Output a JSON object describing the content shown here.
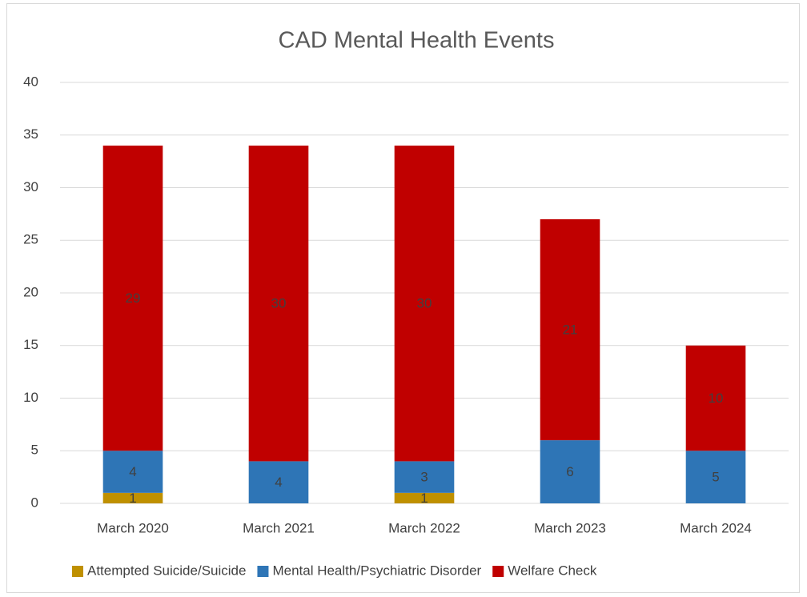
{
  "chart_data": {
    "type": "stacked_bar",
    "title": "CAD Mental Health Events",
    "categories": [
      "March 2020",
      "March 2021",
      "March 2022",
      "March 2023",
      "March 2024"
    ],
    "series": [
      {
        "name": "Attempted Suicide/Suicide",
        "color": "#bf9000",
        "values": [
          1,
          null,
          1,
          null,
          null
        ]
      },
      {
        "name": "Mental Health/Psychiatric Disorder",
        "color": "#2e75b6",
        "values": [
          4,
          4,
          3,
          6,
          5
        ]
      },
      {
        "name": "Welfare Check",
        "color": "#c00000",
        "values": [
          29,
          30,
          30,
          21,
          10
        ]
      }
    ],
    "ylim": [
      0,
      40
    ],
    "yticks": [
      0,
      5,
      10,
      15,
      20,
      25,
      30,
      35,
      40
    ],
    "grid": true,
    "legend": "bottom"
  }
}
